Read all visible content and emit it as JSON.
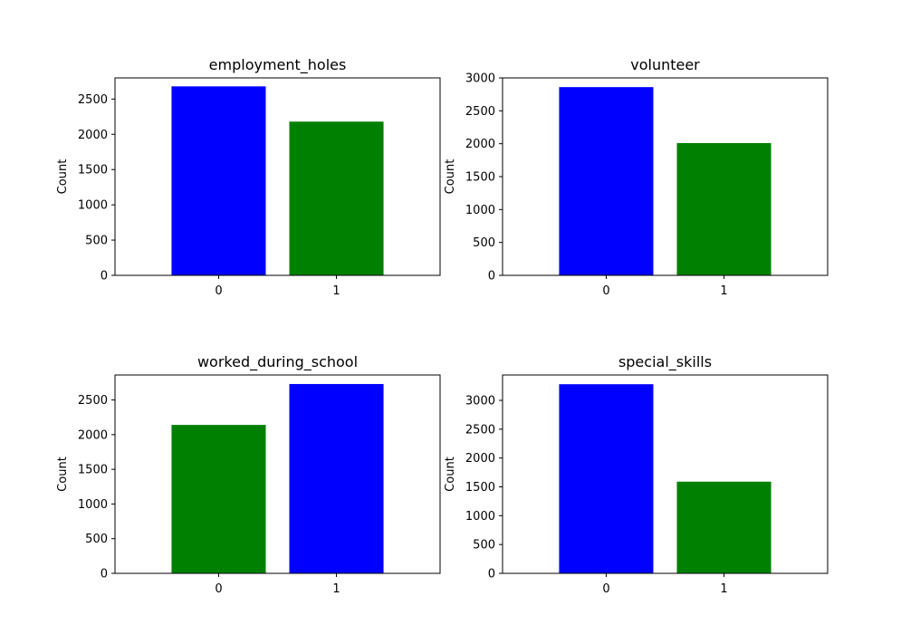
{
  "colors": {
    "blue": "#0000ff",
    "green": "#008000"
  },
  "chart_data": [
    {
      "type": "bar",
      "title": "employment_holes",
      "ylabel": "Count",
      "categories": [
        "0",
        "1"
      ],
      "values": [
        2680,
        2180
      ],
      "bar_colors": [
        "#0000ff",
        "#008000"
      ],
      "ylim": [
        0,
        2800
      ],
      "yticks": [
        0,
        500,
        1000,
        1500,
        2000,
        2500
      ]
    },
    {
      "type": "bar",
      "title": "volunteer",
      "ylabel": "Count",
      "categories": [
        "0",
        "1"
      ],
      "values": [
        2860,
        2010
      ],
      "bar_colors": [
        "#0000ff",
        "#008000"
      ],
      "ylim": [
        0,
        3000
      ],
      "yticks": [
        0,
        500,
        1000,
        1500,
        2000,
        2500,
        3000
      ]
    },
    {
      "type": "bar",
      "title": "worked_during_school",
      "ylabel": "Count",
      "categories": [
        "0",
        "1"
      ],
      "values": [
        2140,
        2730
      ],
      "bar_colors": [
        "#008000",
        "#0000ff"
      ],
      "ylim": [
        0,
        2860
      ],
      "yticks": [
        0,
        500,
        1000,
        1500,
        2000,
        2500
      ]
    },
    {
      "type": "bar",
      "title": "special_skills",
      "ylabel": "Count",
      "categories": [
        "0",
        "1"
      ],
      "values": [
        3280,
        1590
      ],
      "bar_colors": [
        "#0000ff",
        "#008000"
      ],
      "ylim": [
        0,
        3440
      ],
      "yticks": [
        0,
        500,
        1000,
        1500,
        2000,
        2500,
        3000
      ]
    }
  ]
}
